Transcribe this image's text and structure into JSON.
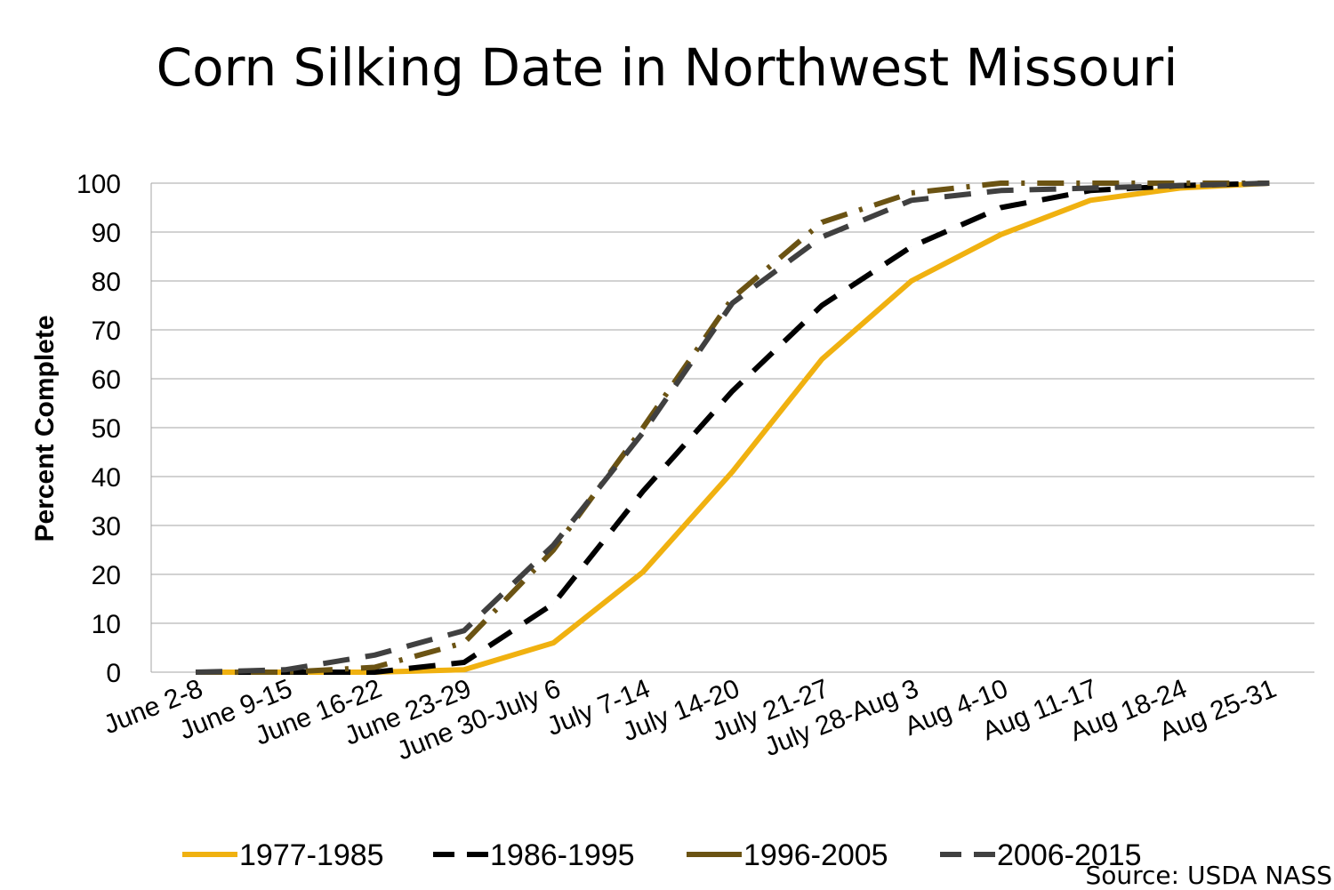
{
  "chart_data": {
    "type": "line",
    "title": "Corn Silking Date in Northwest Missouri",
    "xlabel": "",
    "ylabel": "Percent Complete",
    "ylim": [
      0,
      100
    ],
    "yticks": [
      "0",
      "10",
      "20",
      "30",
      "40",
      "50",
      "60",
      "70",
      "80",
      "90",
      "100"
    ],
    "grid": true,
    "legend_position": "bottom",
    "categories": [
      "June 2-8",
      "June 9-15",
      "June 16-22",
      "June 23-29",
      "June 30-July 6",
      "July 7-14",
      "July 14-20",
      "July 21-27",
      "July 28-Aug 3",
      "Aug 4-10",
      "Aug 11-17",
      "Aug 18-24",
      "Aug 25-31"
    ],
    "series": [
      {
        "name": "1977-1985",
        "color": "#F0B110",
        "style": "solid",
        "values": [
          0,
          0,
          0,
          0.5,
          6,
          20.5,
          41,
          64,
          80,
          89.5,
          96.5,
          99,
          100
        ]
      },
      {
        "name": "1986-1995",
        "color": "#000000",
        "style": "dashed",
        "values": [
          0,
          0,
          0,
          2,
          14,
          37,
          57.5,
          75,
          87,
          95,
          98.5,
          99.5,
          100
        ]
      },
      {
        "name": "1996-2005",
        "color": "#6B5313",
        "style": "dashdot",
        "values": [
          0,
          0,
          1,
          6,
          25,
          50,
          76.5,
          92,
          98,
          100,
          100,
          100,
          100
        ]
      },
      {
        "name": "2006-2015",
        "color": "#404040",
        "style": "dashed",
        "values": [
          0,
          0.5,
          3.5,
          8.5,
          26,
          49,
          75.5,
          89,
          96.5,
          98.5,
          99,
          99.5,
          100
        ]
      }
    ],
    "source": "Source: USDA NASS"
  }
}
